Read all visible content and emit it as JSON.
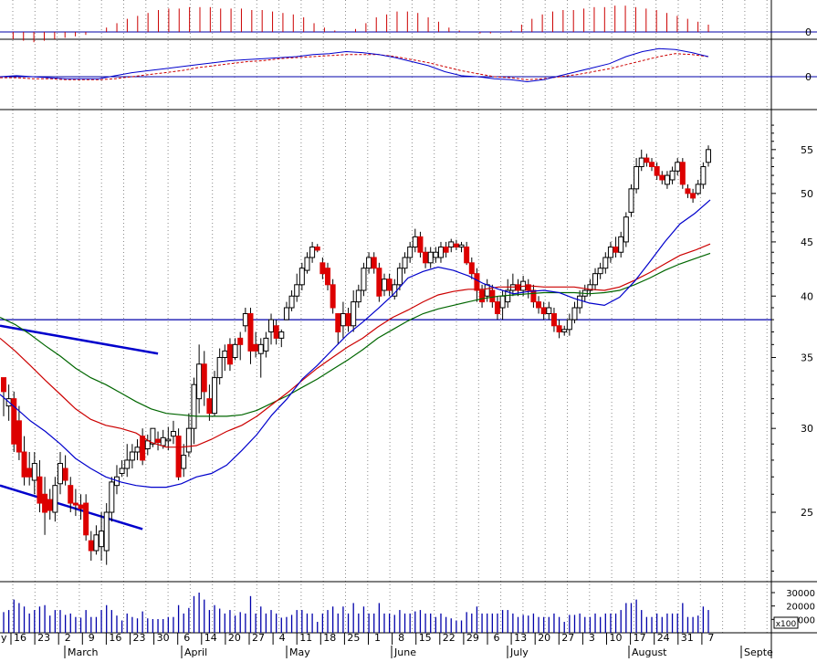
{
  "chart_data": {
    "type": "candlestick",
    "x_axis": {
      "day_ticks": [
        "16",
        "23",
        "2",
        "9",
        "16",
        "23",
        "30",
        "6",
        "14",
        "20",
        "27",
        "4",
        "11",
        "18",
        "25",
        "1",
        "8",
        "15",
        "22",
        "29",
        "6",
        "13",
        "20",
        "27",
        "3",
        "10",
        "17",
        "24",
        "31",
        "7"
      ],
      "month_labels": [
        "March",
        "April",
        "May",
        "June",
        "July",
        "August",
        "Septe"
      ],
      "leading_label": "y"
    },
    "price_axis": {
      "scale": "log",
      "ylim": [
        21.5,
        60
      ],
      "ticks": [
        25,
        30,
        35,
        40,
        45,
        50,
        55
      ]
    },
    "macd_axis": {
      "ticks": [
        0
      ]
    },
    "signal_axis": {
      "ticks": [
        0
      ]
    },
    "volume_axis": {
      "ticks": [
        "30000",
        "20000",
        "10000"
      ],
      "unit_label": "x100"
    },
    "support_line_price": 38,
    "trendlines": [
      {
        "from": [
          0,
          37.5
        ],
        "to": [
          30,
          35.3
        ]
      },
      {
        "from": [
          0,
          26.5
        ],
        "to": [
          27,
          24.1
        ]
      }
    ],
    "candles": [
      [
        33.5,
        32.5,
        33,
        30.8
      ],
      [
        31.5,
        32,
        33,
        30.5
      ],
      [
        32,
        29,
        32.5,
        28.5
      ],
      [
        30.5,
        28.5,
        31.5,
        28
      ],
      [
        28.5,
        27,
        29.5,
        26.5
      ],
      [
        27.5,
        27,
        28.5,
        26.5
      ],
      [
        26.8,
        27.8,
        28.5,
        26
      ],
      [
        27,
        25.5,
        28,
        25
      ],
      [
        26,
        25,
        27,
        23.8
      ],
      [
        25.7,
        25.1,
        26.3,
        24.6
      ],
      [
        25,
        26.5,
        27,
        24.5
      ],
      [
        26.6,
        27.8,
        28.5,
        26
      ],
      [
        27.5,
        26.8,
        28.3,
        26.5
      ],
      [
        26.5,
        25.5,
        27,
        25
      ],
      [
        25.5,
        25.4,
        26.3,
        24.8
      ],
      [
        25.4,
        25.2,
        26,
        24.6
      ],
      [
        25.5,
        23.8,
        26,
        23.5
      ],
      [
        23.5,
        23,
        24,
        22.5
      ],
      [
        23,
        23.8,
        24.3,
        22.8
      ],
      [
        23.2,
        24,
        25,
        22.5
      ],
      [
        23,
        25,
        25.5,
        22.3
      ],
      [
        25,
        26.7,
        27,
        24.5
      ],
      [
        26.5,
        27,
        27.7,
        26
      ],
      [
        27.2,
        27.5,
        28,
        27
      ],
      [
        27.5,
        28,
        29,
        27
      ],
      [
        28,
        28.5,
        29,
        27.5
      ],
      [
        28.5,
        28.8,
        29.3,
        28
      ],
      [
        29.5,
        28,
        30,
        27.7
      ],
      [
        28.7,
        29.2,
        29.6,
        28.3
      ],
      [
        29,
        30,
        30,
        28.8
      ],
      [
        29.3,
        29.1,
        29.8,
        28.6
      ],
      [
        28.9,
        29.4,
        29.9,
        28.7
      ],
      [
        29.2,
        29.3,
        30.1,
        28.6
      ],
      [
        29.5,
        29.8,
        30.5,
        29
      ],
      [
        29.5,
        27,
        30,
        26.8
      ],
      [
        27.5,
        28.3,
        29,
        27
      ],
      [
        28.5,
        30,
        31,
        28.2
      ],
      [
        30,
        33,
        33.5,
        29
      ],
      [
        32,
        34.5,
        36,
        31
      ],
      [
        34.5,
        32.5,
        35.5,
        31.5
      ],
      [
        32,
        31,
        33,
        30.5
      ],
      [
        31,
        33.5,
        34,
        30.8
      ],
      [
        33.5,
        35,
        35.7,
        33
      ],
      [
        35,
        35.5,
        36,
        34
      ],
      [
        36,
        34.5,
        36.5,
        34
      ],
      [
        35,
        36,
        36.5,
        34.8
      ],
      [
        36.5,
        36,
        37,
        34.8
      ],
      [
        37.5,
        38.5,
        39,
        37
      ],
      [
        38.5,
        35.5,
        39,
        34.5
      ],
      [
        36,
        35.5,
        37,
        35
      ],
      [
        35.3,
        36,
        36.5,
        33.5
      ],
      [
        35.5,
        36.5,
        37,
        35
      ],
      [
        37,
        38,
        38.5,
        36
      ],
      [
        37.5,
        36.5,
        38,
        36
      ],
      [
        36.5,
        37,
        37.2,
        35.8
      ],
      [
        38,
        39,
        39.5,
        38
      ],
      [
        39,
        40,
        40.5,
        38.7
      ],
      [
        40,
        41,
        42,
        39.5
      ],
      [
        41,
        42.5,
        43,
        40.5
      ],
      [
        42.3,
        43.5,
        44,
        42
      ],
      [
        43.5,
        44.5,
        45,
        43
      ],
      [
        44.5,
        44.2,
        44.8,
        44
      ],
      [
        43,
        42,
        43.5,
        41.5
      ],
      [
        42.5,
        41,
        43,
        40.5
      ],
      [
        41,
        39,
        41.5,
        38.5
      ],
      [
        38.5,
        37,
        38,
        36
      ],
      [
        37.5,
        38.5,
        39.5,
        36.5
      ],
      [
        38.5,
        37.5,
        39,
        37
      ],
      [
        37.5,
        39.5,
        40.5,
        37
      ],
      [
        39.5,
        40.5,
        41,
        39
      ],
      [
        40.5,
        42.5,
        43,
        40
      ],
      [
        42.5,
        43.5,
        44,
        42
      ],
      [
        43.5,
        42.5,
        44,
        42
      ],
      [
        42.5,
        40,
        43,
        39.5
      ],
      [
        40.5,
        41.5,
        42,
        40
      ],
      [
        41.5,
        40.5,
        42,
        40
      ],
      [
        40,
        41,
        41.5,
        39.7
      ],
      [
        41,
        42.5,
        43,
        40.5
      ],
      [
        42.5,
        43.5,
        44,
        42
      ],
      [
        43.5,
        44.5,
        45,
        43
      ],
      [
        44.5,
        45.5,
        46.3,
        44
      ],
      [
        45.5,
        44,
        46,
        43.5
      ],
      [
        44,
        43,
        44.5,
        42.5
      ],
      [
        43,
        44,
        44.5,
        42.5
      ],
      [
        43.5,
        44,
        44.5,
        43
      ],
      [
        43.5,
        44.5,
        45,
        43
      ],
      [
        44.5,
        44,
        45,
        43.5
      ],
      [
        44.5,
        45,
        45.3,
        44
      ],
      [
        44.8,
        44.5,
        45.2,
        44.2
      ],
      [
        44.5,
        44.7,
        45,
        44
      ],
      [
        44.5,
        43,
        45,
        42.8
      ],
      [
        43,
        42,
        43.5,
        41.5
      ],
      [
        42,
        40.5,
        42.5,
        39.5
      ],
      [
        40.5,
        39.5,
        41,
        39
      ],
      [
        40,
        41,
        41.5,
        39.5
      ],
      [
        40.5,
        39.5,
        41,
        39
      ],
      [
        39.5,
        38.5,
        40,
        38
      ],
      [
        39,
        40,
        40.5,
        38
      ],
      [
        39.5,
        40.5,
        41.5,
        39
      ],
      [
        40.5,
        41,
        42,
        40
      ],
      [
        41,
        40.5,
        41.5,
        40
      ],
      [
        40.5,
        41.3,
        41.8,
        40
      ],
      [
        41,
        40.5,
        41.5,
        39.8
      ],
      [
        40.5,
        39.5,
        41,
        39
      ],
      [
        39.5,
        39,
        40,
        38.5
      ],
      [
        39,
        38.5,
        39.5,
        38
      ],
      [
        38.5,
        39,
        39.5,
        38
      ],
      [
        38.5,
        37.5,
        39,
        37
      ],
      [
        37.5,
        37,
        38,
        36.5
      ],
      [
        37,
        37.2,
        37.5,
        36.7
      ],
      [
        37.2,
        38,
        38.5,
        36.7
      ],
      [
        38,
        39,
        39.5,
        37.7
      ],
      [
        39,
        40,
        40.5,
        38.5
      ],
      [
        40,
        40.5,
        41,
        39.5
      ],
      [
        40.5,
        41,
        41.5,
        40
      ],
      [
        41,
        42,
        42.5,
        40.5
      ],
      [
        42,
        42.5,
        43,
        41.5
      ],
      [
        42.5,
        43.5,
        44,
        42
      ],
      [
        43.5,
        44.5,
        45,
        43
      ],
      [
        44.5,
        44,
        45.5,
        43.5
      ],
      [
        44,
        45.5,
        46,
        43.5
      ],
      [
        45,
        47.5,
        48,
        44.5
      ],
      [
        48,
        50.5,
        51,
        47.5
      ],
      [
        50.5,
        53,
        54,
        50
      ],
      [
        53,
        54,
        55,
        52.5
      ],
      [
        54,
        53.5,
        54.5,
        53
      ],
      [
        53.5,
        53,
        54,
        52.5
      ],
      [
        53,
        52,
        53.5,
        51.5
      ],
      [
        52,
        51.5,
        52.5,
        51
      ],
      [
        51,
        52,
        52.5,
        50.5
      ],
      [
        51.5,
        52.5,
        53,
        51
      ],
      [
        52.5,
        53.5,
        54,
        52
      ],
      [
        53.5,
        51,
        54,
        50.5
      ],
      [
        50.5,
        50,
        51,
        49.5
      ],
      [
        50,
        49.5,
        50.5,
        49
      ],
      [
        50,
        51,
        51.5,
        49.8
      ],
      [
        51,
        53,
        53.5,
        50.5
      ],
      [
        53.5,
        55,
        55.5,
        53
      ]
    ],
    "ma_short": [
      32.3,
      31.4,
      30.5,
      29.8,
      29,
      28.1,
      27.5,
      27,
      26.7,
      26.5,
      26.4,
      26.4,
      26.6,
      27,
      27.2,
      27.7,
      28.6,
      29.6,
      30.9,
      32,
      33.4,
      34.4,
      35.6,
      36.8,
      37.8,
      38.9,
      40.1,
      41.6,
      42.2,
      42.6,
      42.3,
      41.8,
      41.1,
      40.6,
      40.2,
      40.4,
      40.5,
      40.3,
      39.8,
      39.4,
      39.2,
      39.9,
      41.3,
      43.1,
      45,
      46.8,
      47.9,
      49.3
    ],
    "ma_mid": [
      36.5,
      35.5,
      34.4,
      33.3,
      32.3,
      31.3,
      30.6,
      30.2,
      30,
      29.7,
      29.1,
      28.8,
      28.8,
      28.9,
      29.3,
      29.8,
      30.2,
      30.8,
      31.6,
      32.4,
      33.3,
      34.2,
      35,
      35.8,
      36.5,
      37.4,
      38.2,
      38.8,
      39.5,
      40.1,
      40.4,
      40.6,
      40.6,
      40.8,
      40.8,
      40.9,
      40.8,
      40.8,
      40.8,
      40.6,
      40.5,
      40.8,
      41.4,
      42.1,
      42.9,
      43.7,
      44.2,
      44.8
    ],
    "ma_long": [
      38.2,
      37.6,
      36.8,
      35.9,
      35.1,
      34.2,
      33.5,
      33,
      32.4,
      31.8,
      31.3,
      31,
      30.9,
      30.8,
      30.8,
      30.8,
      30.9,
      31.2,
      31.7,
      32.2,
      32.8,
      33.4,
      34.1,
      34.8,
      35.6,
      36.5,
      37.2,
      37.9,
      38.5,
      38.9,
      39.2,
      39.5,
      39.8,
      40,
      40.1,
      40.2,
      40.3,
      40.3,
      40.3,
      40.2,
      40.3,
      40.5,
      41,
      41.6,
      42.3,
      42.9,
      43.4,
      43.9
    ],
    "macd_histogram": [
      0,
      -0.5,
      -0.6,
      -0.7,
      -0.6,
      -0.5,
      -0.4,
      -0.3,
      -0.2,
      0,
      0.3,
      0.6,
      0.9,
      1.1,
      1.3,
      1.5,
      1.6,
      1.6,
      1.7,
      1.7,
      1.7,
      1.6,
      1.6,
      1.6,
      1.5,
      1.5,
      1.4,
      1.3,
      1.2,
      1,
      0.6,
      0.3,
      0.1,
      0,
      0.2,
      0.6,
      1,
      1.2,
      1.4,
      1.4,
      1.3,
      1,
      0.7,
      0.3,
      0.1,
      0,
      -0.1,
      -0.1,
      0,
      0.1,
      0.5,
      0.9,
      1.2,
      1.4,
      1.5,
      1.5,
      1.6,
      1.7,
      1.7,
      1.8,
      1.8,
      1.7,
      1.6,
      1.5,
      1.3,
      1.1,
      0.9,
      0.7,
      0.5
    ],
    "macd_line": [
      0,
      0.1,
      0,
      -0.1,
      -0.2,
      -0.2,
      -0.2,
      0.1,
      0.4,
      0.6,
      0.8,
      1,
      1.2,
      1.4,
      1.6,
      1.7,
      1.8,
      1.9,
      2,
      2.2,
      2.3,
      2.5,
      2.4,
      2.2,
      1.9,
      1.5,
      1.1,
      0.5,
      0.1,
      0,
      -0.2,
      -0.3,
      -0.5,
      -0.3,
      0.1,
      0.5,
      0.9,
      1.3,
      2,
      2.5,
      2.8,
      2.7,
      2.4,
      2
    ],
    "signal_line": [
      -0.1,
      -0.1,
      -0.2,
      -0.2,
      -0.3,
      -0.3,
      -0.3,
      -0.2,
      0,
      0.2,
      0.4,
      0.6,
      0.9,
      1.1,
      1.3,
      1.5,
      1.6,
      1.8,
      1.9,
      2,
      2.1,
      2.2,
      2.2,
      2.2,
      2,
      1.7,
      1.4,
      1,
      0.6,
      0.3,
      0,
      -0.1,
      -0.3,
      -0.2,
      0,
      0.2,
      0.5,
      0.8,
      1.2,
      1.6,
      2,
      2.3,
      2.2,
      2
    ]
  }
}
